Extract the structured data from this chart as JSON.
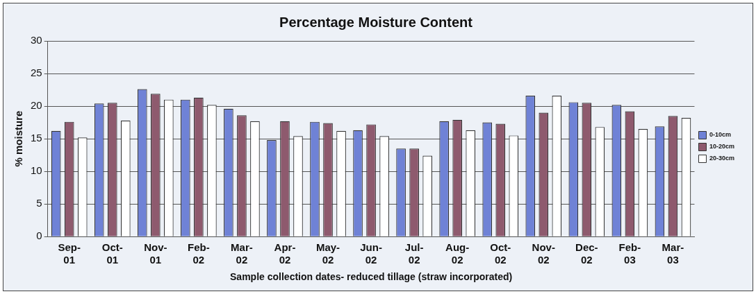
{
  "chart_data": {
    "type": "bar",
    "title": "Percentage Moisture Content",
    "xlabel": "Sample collection dates- reduced tillage (straw incorporated)",
    "ylabel": "% moisture",
    "categories": [
      "Sep-01",
      "Oct-01",
      "Nov-01",
      "Feb-02",
      "Mar-02",
      "Apr-02",
      "May-02",
      "Jun-02",
      "Jul-02",
      "Aug-02",
      "Oct-02",
      "Nov-02",
      "Dec-02",
      "Feb-03",
      "Mar-03"
    ],
    "series": [
      {
        "name": "0-10cm",
        "color": "#6f82d6",
        "values": [
          16.2,
          20.4,
          22.6,
          21.0,
          19.6,
          14.8,
          17.6,
          16.3,
          13.5,
          17.7,
          17.5,
          21.6,
          20.6,
          20.2,
          16.9
        ]
      },
      {
        "name": "10-20cm",
        "color": "#8e5a6e",
        "values": [
          17.6,
          20.5,
          21.9,
          21.3,
          18.6,
          17.7,
          17.4,
          17.2,
          13.5,
          17.9,
          17.3,
          19.0,
          20.5,
          19.2,
          18.5
        ]
      },
      {
        "name": "20-30cm",
        "color": "#ffffff",
        "values": [
          15.2,
          17.8,
          21.0,
          20.2,
          17.7,
          15.4,
          16.2,
          15.4,
          12.4,
          16.3,
          15.5,
          21.6,
          16.8,
          16.5,
          18.2
        ]
      }
    ],
    "ylim": [
      0,
      30
    ],
    "yticks": [
      0,
      5,
      10,
      15,
      20,
      25,
      30
    ],
    "grid": "y",
    "legend": "right"
  }
}
